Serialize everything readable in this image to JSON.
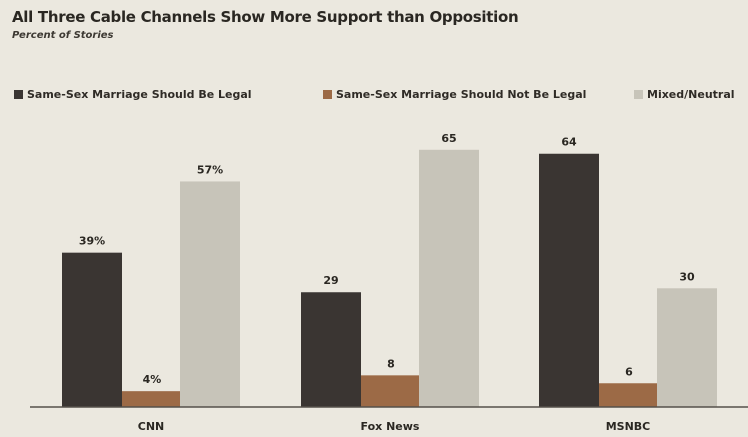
{
  "chart_data": {
    "type": "bar",
    "title": "All Three Cable Channels Show More Support than Opposition",
    "subtitle": "Percent of Stories",
    "categories": [
      "CNN",
      "Fox News",
      "MSNBC"
    ],
    "series": [
      {
        "name": "Same-Sex Marriage Should Be Legal",
        "values": [
          39,
          29,
          64
        ],
        "labels": [
          "39%",
          "29",
          "64"
        ],
        "color": "#3a3532"
      },
      {
        "name": "Same-Sex Marriage Should Not Be Legal",
        "values": [
          4,
          8,
          6
        ],
        "labels": [
          "4%",
          "8",
          "6"
        ],
        "color": "#9c6a46"
      },
      {
        "name": "Mixed/Neutral",
        "values": [
          57,
          65,
          30
        ],
        "labels": [
          "57%",
          "65",
          "30"
        ],
        "color": "#c7c4b9"
      }
    ],
    "ylim": [
      0,
      70
    ],
    "grid": false,
    "legend": "top"
  }
}
